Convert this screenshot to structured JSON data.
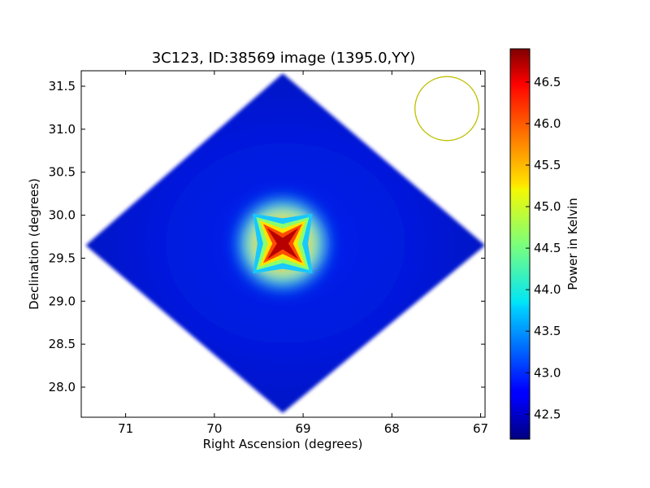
{
  "chart_data": {
    "type": "heatmap",
    "title": "3C123, ID:38569 image (1395.0,YY)",
    "xlabel": "Right Ascension (degrees)",
    "ylabel": "Declination (degrees)",
    "xlim": [
      71.5,
      66.95
    ],
    "ylim": [
      27.65,
      31.68
    ],
    "x_ticks": [
      71,
      70,
      69,
      68,
      67
    ],
    "x_tick_labels": [
      "71",
      "70",
      "69",
      "68",
      "67"
    ],
    "y_ticks": [
      28.0,
      28.5,
      29.0,
      29.5,
      30.0,
      30.5,
      31.0,
      31.5
    ],
    "y_tick_labels": [
      "28.0",
      "28.5",
      "29.0",
      "29.5",
      "30.0",
      "30.5",
      "31.0",
      "31.5"
    ],
    "colorbar": {
      "label": "Power in Kelvin",
      "range": [
        42.2,
        46.9
      ],
      "ticks": [
        42.5,
        43.0,
        43.5,
        44.0,
        44.5,
        45.0,
        45.5,
        46.0,
        46.5
      ],
      "tick_labels": [
        "42.5",
        "43.0",
        "43.5",
        "44.0",
        "44.5",
        "45.0",
        "45.5",
        "46.0",
        "46.5"
      ],
      "colormap": "jet"
    },
    "map": {
      "center": [
        69.23,
        29.67
      ],
      "footprint_vertices": [
        [
          69.23,
          31.65
        ],
        [
          66.95,
          29.65
        ],
        [
          69.23,
          27.7
        ],
        [
          71.45,
          29.65
        ]
      ],
      "background_level": 42.5,
      "peak": {
        "x": 69.23,
        "y": 29.67,
        "value": 46.9
      },
      "beam": {
        "x": 67.38,
        "y": 31.24,
        "radius_deg": 0.36,
        "color": "#bfbf00"
      }
    },
    "colors": {
      "frame": "#000000",
      "beam_outline": "#bfbf00",
      "background": "#ffffff"
    }
  }
}
